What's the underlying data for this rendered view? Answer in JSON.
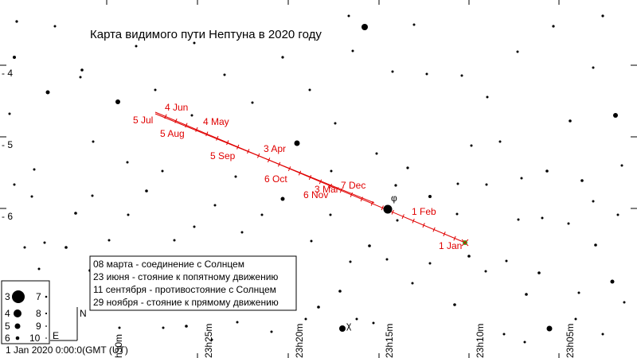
{
  "title": "Карта видимого пути Нептуна в 2020 году",
  "date_labels": [
    {
      "text": "4 Jun"
    },
    {
      "text": "5 Jul"
    },
    {
      "text": "4 May"
    },
    {
      "text": "5 Aug"
    },
    {
      "text": "3 Apr"
    },
    {
      "text": "5 Sep"
    },
    {
      "text": "6 Oct"
    },
    {
      "text": "7 Dec"
    },
    {
      "text": "3 Mar"
    },
    {
      "text": "6 Nov"
    },
    {
      "text": "1 Feb"
    },
    {
      "text": "1 Jan"
    }
  ],
  "dec_labels": [
    "- 4",
    "- 5",
    "- 6"
  ],
  "ra_labels": [
    "h30m",
    "23h25m",
    "23h20m",
    "23h15m",
    "23h10m",
    "23h05m"
  ],
  "events": [
    "08 марта - соединение с Солнцем",
    "23 июня - стояние к попятному движению",
    "11 сентября - противостояние с Солнцем",
    "29 ноября - стояние к прямому движению"
  ],
  "magnitude_legend": [
    "3",
    "4",
    "5",
    "6",
    "7",
    "8",
    "9",
    "10"
  ],
  "compass": {
    "north": "N",
    "east": "E"
  },
  "star_label": "χ",
  "phi_label": "φ",
  "timestamp": "1 Jan 2020  0:00:0(GMT (UT)",
  "colors": {
    "path": "#e00000",
    "start_marker": "#22bb22",
    "stars": "#000000"
  }
}
